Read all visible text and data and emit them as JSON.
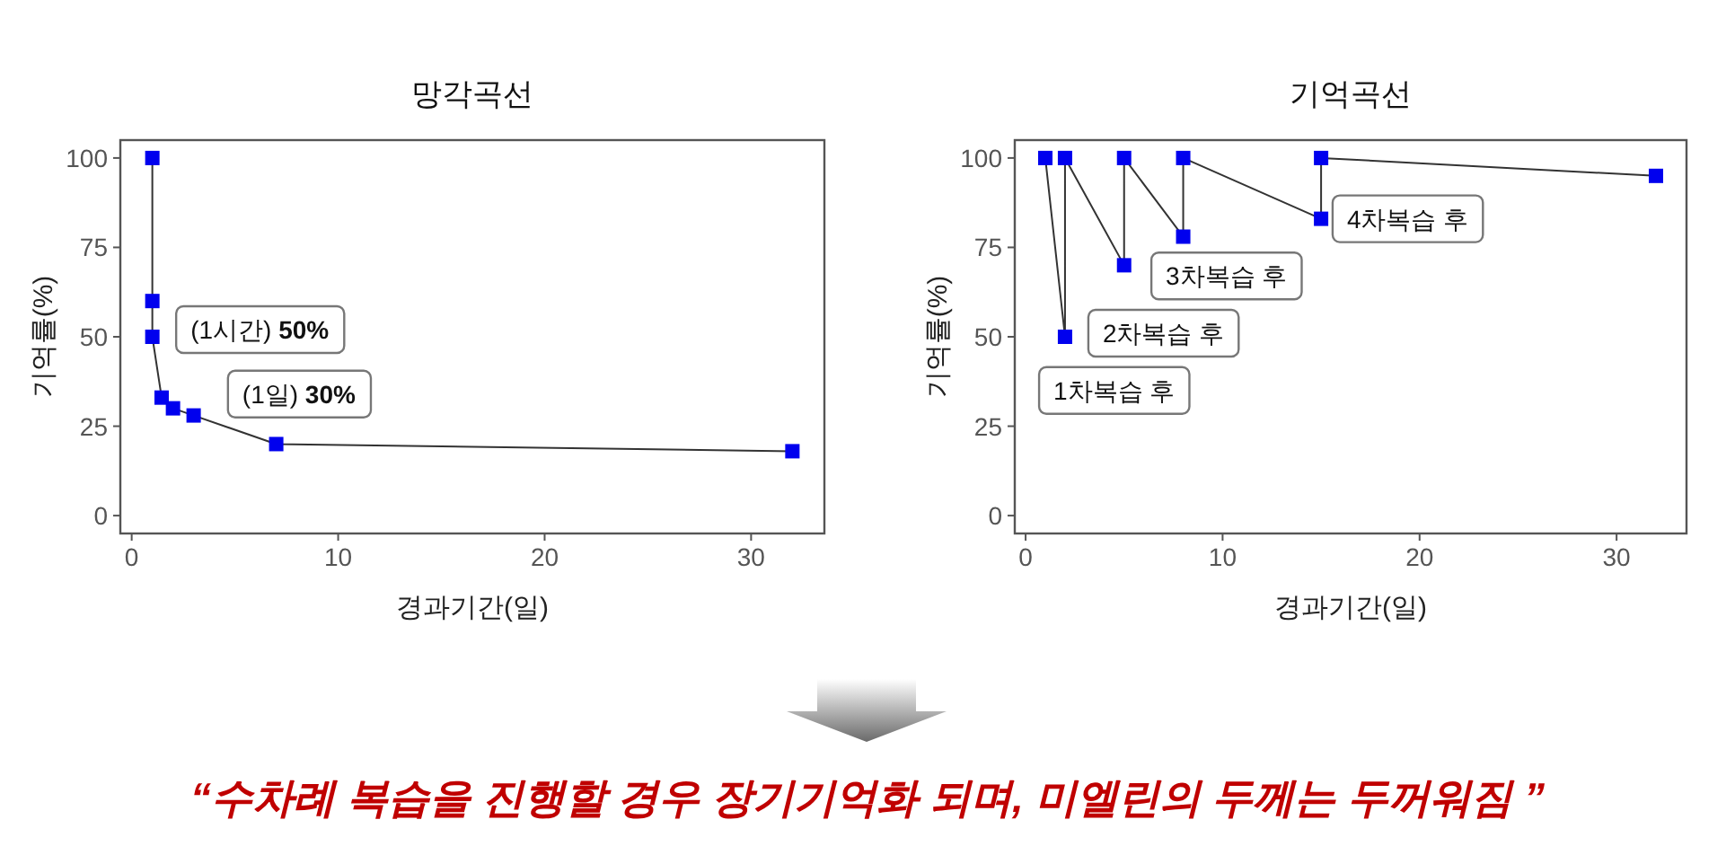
{
  "chart_data": [
    {
      "type": "line",
      "title": "망각곡선",
      "xlabel": "경과기간(일)",
      "ylabel": "기억률(%)",
      "x": [
        1,
        1,
        1,
        1.45,
        2,
        3,
        7,
        32
      ],
      "series": [
        {
          "color": "#0000ee",
          "values": [
            100,
            60,
            50,
            33,
            30,
            28,
            20,
            18
          ]
        }
      ],
      "marker": "square",
      "line_style": "solid",
      "xlim": [
        -0.55,
        33.55
      ],
      "ylim": [
        -5,
        105
      ],
      "xticks": [
        0,
        10,
        20,
        30
      ],
      "yticks": [
        0,
        25,
        50,
        75,
        100
      ],
      "annotations": [
        "(1시간) 50%",
        "(1일) 30%"
      ]
    },
    {
      "type": "line",
      "title": "기억곡선",
      "xlabel": "경과기간(일)",
      "ylabel": "기억률(%)",
      "x": [
        1,
        2,
        2,
        5,
        5,
        8,
        8,
        15,
        15,
        32
      ],
      "series": [
        {
          "color": "#0000ee",
          "values": [
            100,
            50,
            100,
            70,
            100,
            78,
            100,
            83,
            100,
            95
          ]
        }
      ],
      "marker": "square",
      "line_style": "solid",
      "xlim": [
        -0.55,
        33.55
      ],
      "ylim": [
        -5,
        105
      ],
      "xticks": [
        0,
        10,
        20,
        30
      ],
      "yticks": [
        0,
        25,
        50,
        75,
        100
      ],
      "annotations": [
        "1차복습 후",
        "2차복습 후",
        "3차복습 후",
        "4차복습 후"
      ]
    },
    {
      "type": "other",
      "annotations": [
        "“수차례 복습을 진행할 경우 장기기억화 되며, 미엘린의 두께는 두꺼워짐 ”"
      ]
    }
  ]
}
